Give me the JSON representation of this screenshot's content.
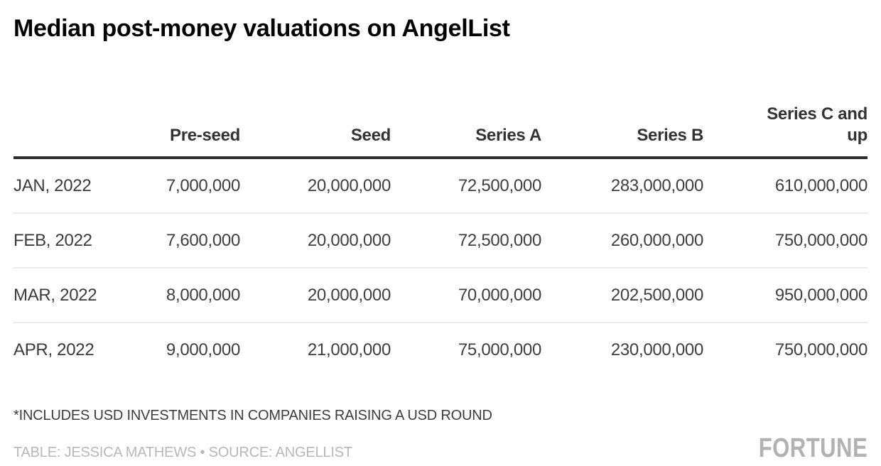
{
  "title": "Median post-money valuations on AngelList",
  "chart_data": {
    "type": "table",
    "title": "Median post-money valuations on AngelList",
    "columns": [
      "",
      "Pre-seed",
      "Seed",
      "Series A",
      "Series B",
      "Series C and up"
    ],
    "rows": [
      [
        "JAN, 2022",
        "7,000,000",
        "20,000,000",
        "72,500,000",
        "283,000,000",
        "610,000,000"
      ],
      [
        "FEB, 2022",
        "7,600,000",
        "20,000,000",
        "72,500,000",
        "260,000,000",
        "750,000,000"
      ],
      [
        "MAR, 2022",
        "8,000,000",
        "20,000,000",
        "70,000,000",
        "202,500,000",
        "950,000,000"
      ],
      [
        "APR, 2022",
        "9,000,000",
        "21,000,000",
        "75,000,000",
        "230,000,000",
        "750,000,000"
      ]
    ],
    "footnote": "*INCLUDES USD INVESTMENTS IN COMPANIES RAISING A USD ROUND",
    "credit": "TABLE: JESSICA MATHEWS • SOURCE: ANGELLIST",
    "logo_text": "FORTUNE",
    "layout_hints": {
      "header_align": "right",
      "value_align": "right",
      "row_label_align": "left",
      "grid": "horizontal-separators-only"
    },
    "colors": {
      "title": "#000000",
      "header_text": "#333333",
      "header_rule": "#2e2e2e",
      "body_text": "#3f3f3f",
      "row_separator": "#ebebeb",
      "footnote_text": "#3c3c3c",
      "credit_text": "#b8b8b8",
      "logo_gray": "#b2b2b2",
      "background": "#ffffff"
    }
  }
}
